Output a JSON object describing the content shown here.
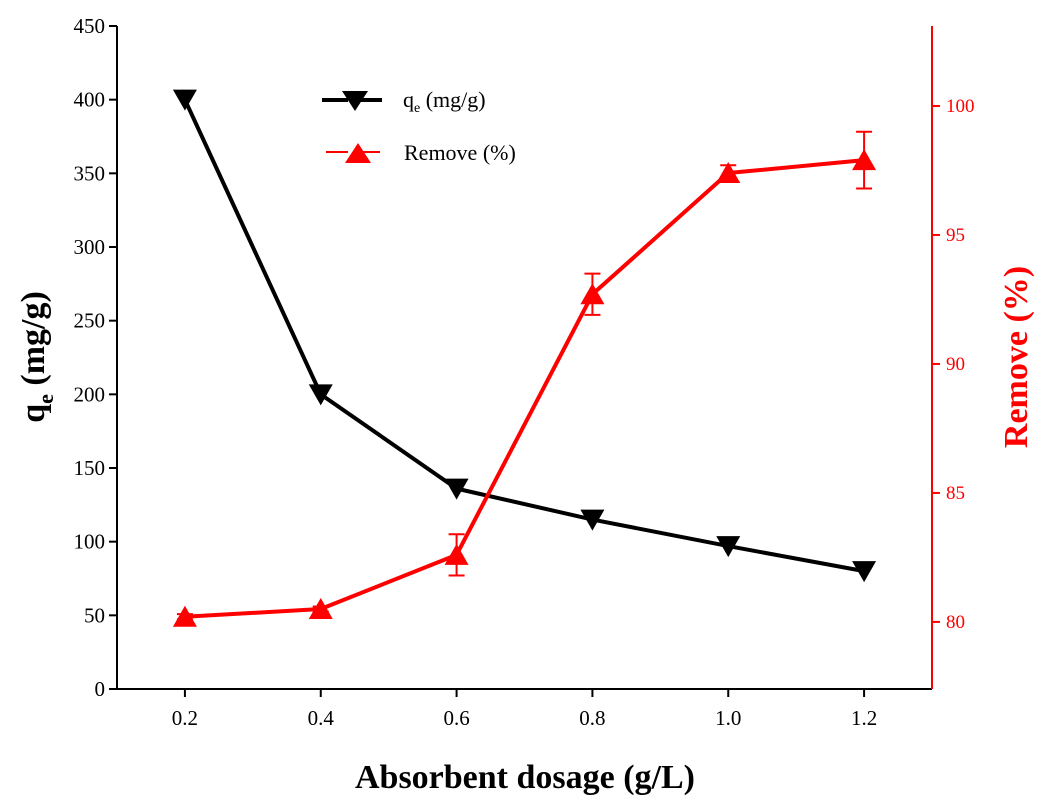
{
  "colors": {
    "qe": "#000000",
    "remove": "#ff0000",
    "axis": "#000000"
  },
  "chart_data": {
    "type": "line",
    "xlabel": "Absorbent dosage  (g/L)",
    "ylabel": {
      "main": "q",
      "sub": "e",
      "rest": " (mg/g)"
    },
    "y2label": "Remove (%)",
    "x": [
      0.2,
      0.4,
      0.6,
      0.8,
      1.0,
      1.2
    ],
    "x_ticks": [
      0.2,
      0.4,
      0.6,
      0.8,
      1.0,
      1.2
    ],
    "x_tick_labels": [
      "0.2",
      "0.4",
      "0.6",
      "0.8",
      "1.0",
      "1.2"
    ],
    "xlim": [
      0.1,
      1.3
    ],
    "ylim": [
      0,
      450
    ],
    "y_ticks": [
      0,
      50,
      100,
      150,
      200,
      250,
      300,
      350,
      400,
      450
    ],
    "y_tick_labels": [
      "0",
      "50",
      "100",
      "150",
      "200",
      "250",
      "300",
      "350",
      "400",
      "450"
    ],
    "y2lim": [
      77.4,
      103.1
    ],
    "y2_ticks": [
      80,
      85,
      90,
      95,
      100
    ],
    "y2_tick_labels": [
      "80",
      "85",
      "90",
      "95",
      "100"
    ],
    "grid": false,
    "legend_position": "top-center",
    "series": [
      {
        "name_main": "q",
        "name_sub": "e",
        "name_rest": " (mg/g)",
        "axis": "left",
        "marker": "triangle-down",
        "color": "#000000",
        "values": [
          400,
          200,
          136,
          115,
          97,
          80
        ]
      },
      {
        "name": "Remove (%)",
        "axis": "right",
        "marker": "triangle-up",
        "color": "#ff0000",
        "values": [
          80.2,
          80.5,
          82.6,
          92.7,
          97.4,
          97.9
        ],
        "errors": [
          0.1,
          0.1,
          0.8,
          0.8,
          0.3,
          1.1
        ]
      }
    ]
  }
}
